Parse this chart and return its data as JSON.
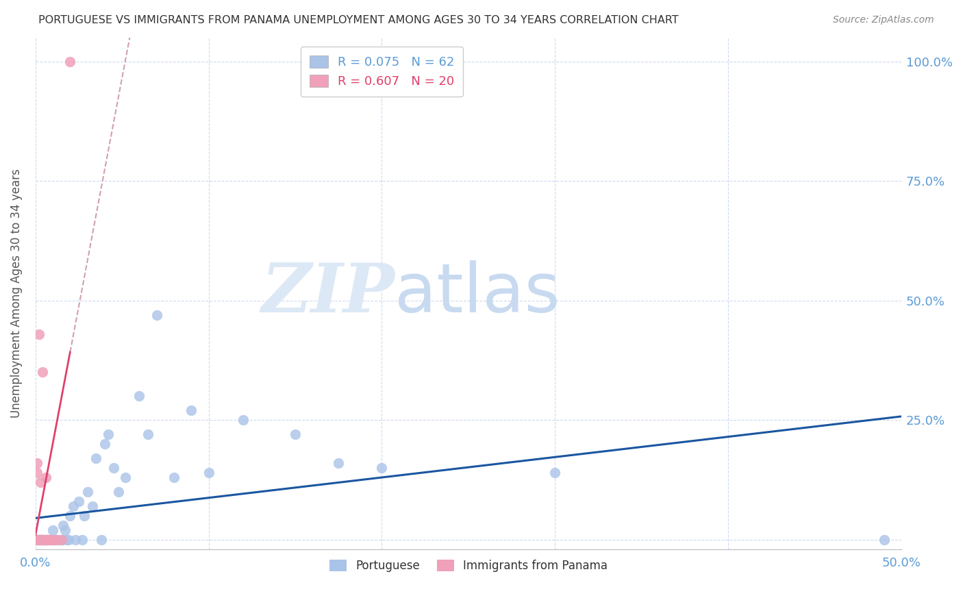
{
  "title": "PORTUGUESE VS IMMIGRANTS FROM PANAMA UNEMPLOYMENT AMONG AGES 30 TO 34 YEARS CORRELATION CHART",
  "source": "Source: ZipAtlas.com",
  "ylabel": "Unemployment Among Ages 30 to 34 years",
  "right_yticks": [
    0.0,
    0.25,
    0.5,
    0.75,
    1.0
  ],
  "right_yticklabels": [
    "",
    "25.0%",
    "50.0%",
    "75.0%",
    "100.0%"
  ],
  "xlim": [
    0.0,
    0.5
  ],
  "ylim": [
    -0.02,
    1.05
  ],
  "watermark_top": "ZIP",
  "watermark_bot": "atlas",
  "series": [
    {
      "label": "Portuguese",
      "R": 0.075,
      "N": 62,
      "color": "#aac4e8",
      "x": [
        0.0,
        0.001,
        0.001,
        0.002,
        0.002,
        0.002,
        0.003,
        0.003,
        0.003,
        0.003,
        0.004,
        0.004,
        0.004,
        0.005,
        0.005,
        0.005,
        0.006,
        0.006,
        0.006,
        0.007,
        0.007,
        0.008,
        0.008,
        0.009,
        0.01,
        0.01,
        0.011,
        0.012,
        0.013,
        0.014,
        0.015,
        0.016,
        0.017,
        0.018,
        0.019,
        0.02,
        0.022,
        0.023,
        0.025,
        0.027,
        0.028,
        0.03,
        0.033,
        0.035,
        0.038,
        0.04,
        0.042,
        0.045,
        0.048,
        0.052,
        0.06,
        0.065,
        0.07,
        0.08,
        0.09,
        0.1,
        0.12,
        0.15,
        0.175,
        0.2,
        0.3,
        0.49
      ],
      "y": [
        0.0,
        0.0,
        0.0,
        0.0,
        0.0,
        0.0,
        0.0,
        0.0,
        0.0,
        0.0,
        0.0,
        0.0,
        0.0,
        0.0,
        0.0,
        0.0,
        0.0,
        0.0,
        0.0,
        0.0,
        0.0,
        0.0,
        0.0,
        0.0,
        0.0,
        0.02,
        0.0,
        0.0,
        0.0,
        0.0,
        0.0,
        0.03,
        0.02,
        0.0,
        0.0,
        0.05,
        0.07,
        0.0,
        0.08,
        0.0,
        0.05,
        0.1,
        0.07,
        0.17,
        0.0,
        0.2,
        0.22,
        0.15,
        0.1,
        0.13,
        0.3,
        0.22,
        0.47,
        0.13,
        0.27,
        0.14,
        0.25,
        0.22,
        0.16,
        0.15,
        0.14,
        0.0
      ]
    },
    {
      "label": "Immigrants from Panama",
      "R": 0.607,
      "N": 20,
      "color": "#f0a0b8",
      "x": [
        0.0,
        0.0,
        0.0,
        0.001,
        0.001,
        0.002,
        0.002,
        0.003,
        0.003,
        0.004,
        0.004,
        0.005,
        0.006,
        0.007,
        0.008,
        0.009,
        0.01,
        0.012,
        0.015,
        0.02
      ],
      "y": [
        0.0,
        0.0,
        0.0,
        0.14,
        0.16,
        0.0,
        0.43,
        0.0,
        0.12,
        0.0,
        0.35,
        0.0,
        0.13,
        0.0,
        0.0,
        0.0,
        0.0,
        0.0,
        0.0,
        1.0
      ]
    }
  ],
  "trendline_blue_color": "#1a56a0",
  "trendline_pink_solid_color": "#e0406a",
  "trendline_pink_dash_color": "#d0a0b0",
  "title_color": "#333333",
  "source_color": "#888888",
  "tick_color": "#5b9bd5",
  "grid_color": "#ccdaee",
  "watermark_color": "#dce8f5"
}
